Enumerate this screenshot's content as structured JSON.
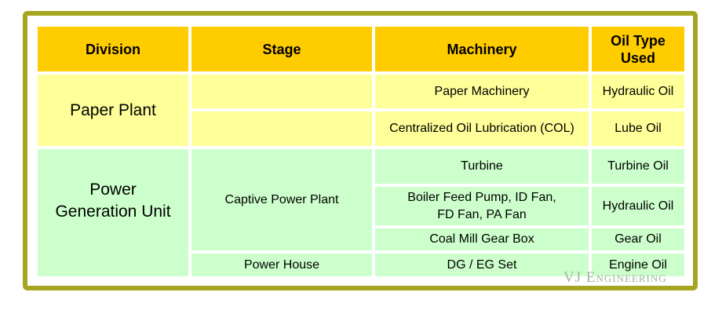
{
  "headers": [
    "Division",
    "Stage",
    "Machinery",
    "Oil Type Used"
  ],
  "divisions": {
    "paper": "Paper Plant",
    "power": "Power Generation Unit"
  },
  "stages": {
    "captive": "Captive Power Plant",
    "powerhouse": "Power House"
  },
  "rows": [
    {
      "machinery": "Paper Machinery",
      "oil": "Hydraulic Oil"
    },
    {
      "machinery": "Centralized Oil Lubrication (COL)",
      "oil": "Lube Oil"
    },
    {
      "machinery": "Turbine",
      "oil": "Turbine Oil"
    },
    {
      "machinery": "Boiler Feed Pump, ID Fan, FD Fan, PA Fan",
      "oil": "Hydraulic Oil"
    },
    {
      "machinery": "Coal Mill Gear Box",
      "oil": "Gear Oil"
    },
    {
      "machinery": "DG / EG Set",
      "oil": "Engine Oil"
    }
  ],
  "watermark": "VJ Engineering",
  "colors": {
    "header": "#ffcc00",
    "paper": "#ffff99",
    "power": "#ccffcc",
    "frame": "#a5a520"
  }
}
